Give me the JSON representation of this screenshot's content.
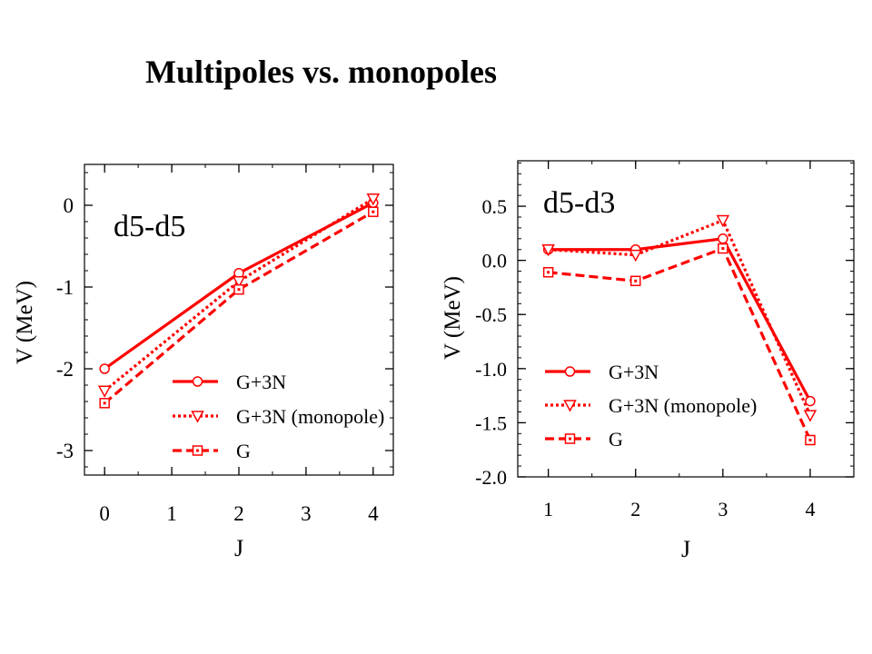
{
  "page": {
    "title": "Multipoles vs. monopoles"
  },
  "chart_data": [
    {
      "type": "line",
      "title": "d5-d5",
      "xlabel": "J",
      "ylabel": "V  (MeV)",
      "xlim": [
        -0.3,
        4.3
      ],
      "ylim": [
        -3.3,
        0.5
      ],
      "xticks": [
        0,
        1,
        2,
        3,
        4
      ],
      "xtick_labels": [
        "0",
        "1",
        "2",
        "3",
        "4"
      ],
      "yticks": [
        0,
        -1,
        -2,
        -3
      ],
      "ytick_labels": [
        "0",
        "-1",
        "-2",
        "-3"
      ],
      "grid": false,
      "legend_position": "bottom-right",
      "color": "#ff0000",
      "series": [
        {
          "name": "G+3N",
          "line_style": "solid",
          "marker": "circle",
          "x": [
            0,
            2,
            4
          ],
          "y": [
            -2.0,
            -0.83,
            0.03
          ]
        },
        {
          "name": "G+3N (monopole)",
          "line_style": "dotted",
          "marker": "triangle-down",
          "x": [
            0,
            2,
            4
          ],
          "y": [
            -2.27,
            -0.93,
            0.08
          ]
        },
        {
          "name": "G",
          "line_style": "dashed",
          "marker": "square",
          "x": [
            0,
            2,
            4
          ],
          "y": [
            -2.42,
            -1.03,
            -0.08
          ]
        }
      ]
    },
    {
      "type": "line",
      "title": "d5-d3",
      "xlabel": "J",
      "ylabel": "V  (MeV)",
      "xlim": [
        0.65,
        4.5
      ],
      "ylim": [
        -2.0,
        0.92
      ],
      "xticks": [
        1,
        2,
        3,
        4
      ],
      "xtick_labels": [
        "1",
        "2",
        "3",
        "4"
      ],
      "yticks": [
        0.5,
        0.0,
        -0.5,
        -1.0,
        -1.5,
        -2.0
      ],
      "ytick_labels": [
        "0.5",
        "0.0",
        "-0.5",
        "-1.0",
        "-1.5",
        "-2.0"
      ],
      "grid": false,
      "legend_position": "bottom-left",
      "color": "#ff0000",
      "series": [
        {
          "name": "G+3N",
          "line_style": "solid",
          "marker": "circle",
          "x": [
            1,
            2,
            3,
            4
          ],
          "y": [
            0.1,
            0.1,
            0.2,
            -1.3
          ]
        },
        {
          "name": "G+3N (monopole)",
          "line_style": "dotted",
          "marker": "triangle-down",
          "x": [
            1,
            2,
            3,
            4
          ],
          "y": [
            0.1,
            0.05,
            0.37,
            -1.43
          ]
        },
        {
          "name": "G",
          "line_style": "dashed",
          "marker": "square",
          "x": [
            1,
            2,
            3,
            4
          ],
          "y": [
            -0.11,
            -0.19,
            0.11,
            -1.66
          ]
        }
      ]
    }
  ]
}
